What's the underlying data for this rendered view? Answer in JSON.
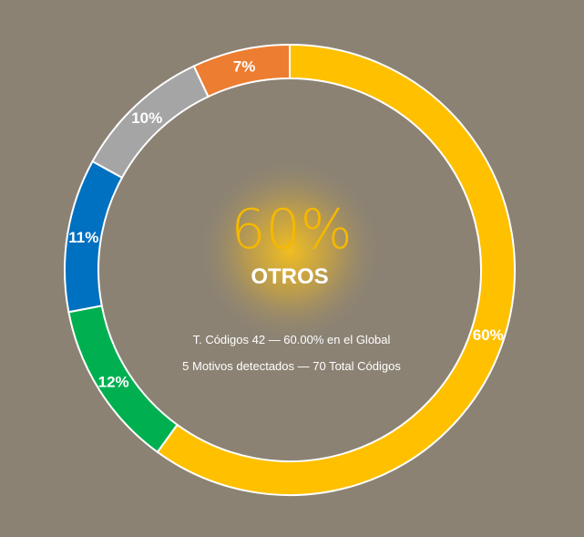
{
  "chart_data": {
    "type": "pie",
    "categories": [
      "OTROS",
      "",
      "",
      "",
      ""
    ],
    "values": [
      60,
      12,
      11,
      10,
      7
    ],
    "labels": [
      "60%",
      "12%",
      "11%",
      "10%",
      "7%"
    ],
    "colors": [
      "#ffc000",
      "#00b050",
      "#0070c0",
      "#a5a5a5",
      "#ed7d31"
    ],
    "center": {
      "percent": "60%",
      "name": "OTROS",
      "line1": "T. Códigos 42 — 60.00% en el Global",
      "line2": "5 Motivos detectados — 70 Total Códigos"
    }
  }
}
